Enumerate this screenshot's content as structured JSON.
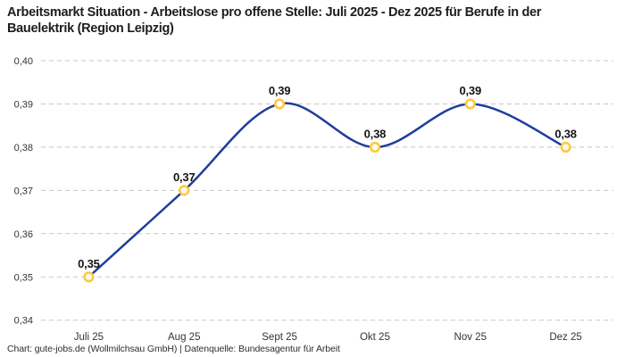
{
  "header": {
    "title": "Arbeitsmarkt Situation - Arbeitslose pro offene Stelle: Juli 2025 - Dez 2025 für Berufe in der Bauelektrik (Region Leipzig)"
  },
  "footer": {
    "credit": "Chart: gute-jobs.de (Wollmilchsau GmbH) | Datenquelle: Bundesagentur für Arbeit"
  },
  "chart_data": {
    "type": "line",
    "title": "Arbeitsmarkt Situation - Arbeitslose pro offene Stelle: Juli 2025 - Dez 2025 für Berufe in der Bauelektrik (Region Leipzig)",
    "categories": [
      "Juli 25",
      "Aug 25",
      "Sept 25",
      "Okt 25",
      "Nov 25",
      "Dez 25"
    ],
    "values": [
      0.35,
      0.37,
      0.39,
      0.38,
      0.39,
      0.38
    ],
    "point_labels": [
      "0,35",
      "0,37",
      "0,39",
      "0,38",
      "0,39",
      "0,38"
    ],
    "ylim": [
      0.34,
      0.4
    ],
    "ytick_values": [
      0.4,
      0.39,
      0.38,
      0.37,
      0.36,
      0.35,
      0.34
    ],
    "ytick_labels": [
      "0,40",
      "0,39",
      "0,38",
      "0,37",
      "0,36",
      "0,35",
      "0,34"
    ],
    "xlabel": "",
    "ylabel": "",
    "grid": "horizontal-dashed",
    "legend": "none",
    "curve": "smooth-spline",
    "colors": {
      "line": "#1e3d9c",
      "marker_ring": "#ffc83d",
      "marker_fill": "#ffffff",
      "gridline": "#c9c9c9",
      "title_text": "#1d1d1d",
      "axis_text": "#333333"
    }
  }
}
